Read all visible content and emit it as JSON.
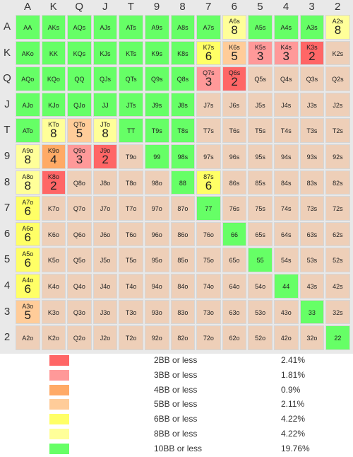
{
  "colors": {
    "10bb": "#66ff66",
    "8bb": "#ffff99",
    "6bb": "#ffff66",
    "5bb": "#ffcc99",
    "4bb": "#ffaa66",
    "3bb": "#ff9999",
    "2bb": "#ff6666",
    "fold": "#eecfb8",
    "background": "#e9e9e9"
  },
  "ranks": [
    "A",
    "K",
    "Q",
    "J",
    "T",
    "9",
    "8",
    "7",
    "6",
    "5",
    "4",
    "3",
    "2"
  ],
  "grid": [
    [
      [
        "AA",
        "",
        "10bb"
      ],
      [
        "AKs",
        "",
        "10bb"
      ],
      [
        "AQs",
        "",
        "10bb"
      ],
      [
        "AJs",
        "",
        "10bb"
      ],
      [
        "ATs",
        "",
        "10bb"
      ],
      [
        "A9s",
        "",
        "10bb"
      ],
      [
        "A8s",
        "",
        "10bb"
      ],
      [
        "A7s",
        "",
        "10bb"
      ],
      [
        "A6s",
        "8",
        "8bb"
      ],
      [
        "A5s",
        "",
        "10bb"
      ],
      [
        "A4s",
        "",
        "10bb"
      ],
      [
        "A3s",
        "",
        "10bb"
      ],
      [
        "A2s",
        "8",
        "8bb"
      ]
    ],
    [
      [
        "AKo",
        "",
        "10bb"
      ],
      [
        "KK",
        "",
        "10bb"
      ],
      [
        "KQs",
        "",
        "10bb"
      ],
      [
        "KJs",
        "",
        "10bb"
      ],
      [
        "KTs",
        "",
        "10bb"
      ],
      [
        "K9s",
        "",
        "10bb"
      ],
      [
        "K8s",
        "",
        "10bb"
      ],
      [
        "K7s",
        "6",
        "6bb"
      ],
      [
        "K6s",
        "5",
        "5bb"
      ],
      [
        "K5s",
        "3",
        "3bb"
      ],
      [
        "K4s",
        "3",
        "3bb"
      ],
      [
        "K3s",
        "2",
        "2bb"
      ],
      [
        "K2s",
        "",
        "fold"
      ]
    ],
    [
      [
        "AQo",
        "",
        "10bb"
      ],
      [
        "KQo",
        "",
        "10bb"
      ],
      [
        "QQ",
        "",
        "10bb"
      ],
      [
        "QJs",
        "",
        "10bb"
      ],
      [
        "QTs",
        "",
        "10bb"
      ],
      [
        "Q9s",
        "",
        "10bb"
      ],
      [
        "Q8s",
        "",
        "10bb"
      ],
      [
        "Q7s",
        "3",
        "3bb"
      ],
      [
        "Q6s",
        "2",
        "2bb"
      ],
      [
        "Q5s",
        "",
        "fold"
      ],
      [
        "Q4s",
        "",
        "fold"
      ],
      [
        "Q3s",
        "",
        "fold"
      ],
      [
        "Q2s",
        "",
        "fold"
      ]
    ],
    [
      [
        "AJo",
        "",
        "10bb"
      ],
      [
        "KJo",
        "",
        "10bb"
      ],
      [
        "QJo",
        "",
        "10bb"
      ],
      [
        "JJ",
        "",
        "10bb"
      ],
      [
        "JTs",
        "",
        "10bb"
      ],
      [
        "J9s",
        "",
        "10bb"
      ],
      [
        "J8s",
        "",
        "10bb"
      ],
      [
        "J7s",
        "",
        "fold"
      ],
      [
        "J6s",
        "",
        "fold"
      ],
      [
        "J5s",
        "",
        "fold"
      ],
      [
        "J4s",
        "",
        "fold"
      ],
      [
        "J3s",
        "",
        "fold"
      ],
      [
        "J2s",
        "",
        "fold"
      ]
    ],
    [
      [
        "ATo",
        "",
        "10bb"
      ],
      [
        "KTo",
        "8",
        "8bb"
      ],
      [
        "QTo",
        "5",
        "5bb"
      ],
      [
        "JTo",
        "8",
        "8bb"
      ],
      [
        "TT",
        "",
        "10bb"
      ],
      [
        "T9s",
        "",
        "10bb"
      ],
      [
        "T8s",
        "",
        "10bb"
      ],
      [
        "T7s",
        "",
        "fold"
      ],
      [
        "T6s",
        "",
        "fold"
      ],
      [
        "T5s",
        "",
        "fold"
      ],
      [
        "T4s",
        "",
        "fold"
      ],
      [
        "T3s",
        "",
        "fold"
      ],
      [
        "T2s",
        "",
        "fold"
      ]
    ],
    [
      [
        "A9o",
        "8",
        "8bb"
      ],
      [
        "K9o",
        "4",
        "4bb"
      ],
      [
        "Q9o",
        "3",
        "3bb"
      ],
      [
        "J9o",
        "2",
        "2bb"
      ],
      [
        "T9o",
        "",
        "fold"
      ],
      [
        "99",
        "",
        "10bb"
      ],
      [
        "98s",
        "",
        "10bb"
      ],
      [
        "97s",
        "",
        "fold"
      ],
      [
        "96s",
        "",
        "fold"
      ],
      [
        "95s",
        "",
        "fold"
      ],
      [
        "94s",
        "",
        "fold"
      ],
      [
        "93s",
        "",
        "fold"
      ],
      [
        "92s",
        "",
        "fold"
      ]
    ],
    [
      [
        "A8o",
        "8",
        "8bb"
      ],
      [
        "K8o",
        "2",
        "2bb"
      ],
      [
        "Q8o",
        "",
        "fold"
      ],
      [
        "J8o",
        "",
        "fold"
      ],
      [
        "T8o",
        "",
        "fold"
      ],
      [
        "98o",
        "",
        "fold"
      ],
      [
        "88",
        "",
        "10bb"
      ],
      [
        "87s",
        "6",
        "6bb"
      ],
      [
        "86s",
        "",
        "fold"
      ],
      [
        "85s",
        "",
        "fold"
      ],
      [
        "84s",
        "",
        "fold"
      ],
      [
        "83s",
        "",
        "fold"
      ],
      [
        "82s",
        "",
        "fold"
      ]
    ],
    [
      [
        "A7o",
        "6",
        "6bb"
      ],
      [
        "K7o",
        "",
        "fold"
      ],
      [
        "Q7o",
        "",
        "fold"
      ],
      [
        "J7o",
        "",
        "fold"
      ],
      [
        "T7o",
        "",
        "fold"
      ],
      [
        "97o",
        "",
        "fold"
      ],
      [
        "87o",
        "",
        "fold"
      ],
      [
        "77",
        "",
        "10bb"
      ],
      [
        "76s",
        "",
        "fold"
      ],
      [
        "75s",
        "",
        "fold"
      ],
      [
        "74s",
        "",
        "fold"
      ],
      [
        "73s",
        "",
        "fold"
      ],
      [
        "72s",
        "",
        "fold"
      ]
    ],
    [
      [
        "A6o",
        "6",
        "6bb"
      ],
      [
        "K6o",
        "",
        "fold"
      ],
      [
        "Q6o",
        "",
        "fold"
      ],
      [
        "J6o",
        "",
        "fold"
      ],
      [
        "T6o",
        "",
        "fold"
      ],
      [
        "96o",
        "",
        "fold"
      ],
      [
        "86o",
        "",
        "fold"
      ],
      [
        "76o",
        "",
        "fold"
      ],
      [
        "66",
        "",
        "10bb"
      ],
      [
        "65s",
        "",
        "fold"
      ],
      [
        "64s",
        "",
        "fold"
      ],
      [
        "63s",
        "",
        "fold"
      ],
      [
        "62s",
        "",
        "fold"
      ]
    ],
    [
      [
        "A5o",
        "6",
        "6bb"
      ],
      [
        "K5o",
        "",
        "fold"
      ],
      [
        "Q5o",
        "",
        "fold"
      ],
      [
        "J5o",
        "",
        "fold"
      ],
      [
        "T5o",
        "",
        "fold"
      ],
      [
        "95o",
        "",
        "fold"
      ],
      [
        "85o",
        "",
        "fold"
      ],
      [
        "75o",
        "",
        "fold"
      ],
      [
        "65o",
        "",
        "fold"
      ],
      [
        "55",
        "",
        "10bb"
      ],
      [
        "54s",
        "",
        "fold"
      ],
      [
        "53s",
        "",
        "fold"
      ],
      [
        "52s",
        "",
        "fold"
      ]
    ],
    [
      [
        "A4o",
        "6",
        "6bb"
      ],
      [
        "K4o",
        "",
        "fold"
      ],
      [
        "Q4o",
        "",
        "fold"
      ],
      [
        "J4o",
        "",
        "fold"
      ],
      [
        "T4o",
        "",
        "fold"
      ],
      [
        "94o",
        "",
        "fold"
      ],
      [
        "84o",
        "",
        "fold"
      ],
      [
        "74o",
        "",
        "fold"
      ],
      [
        "64o",
        "",
        "fold"
      ],
      [
        "54o",
        "",
        "fold"
      ],
      [
        "44",
        "",
        "10bb"
      ],
      [
        "43s",
        "",
        "fold"
      ],
      [
        "42s",
        "",
        "fold"
      ]
    ],
    [
      [
        "A3o",
        "5",
        "5bb"
      ],
      [
        "K3o",
        "",
        "fold"
      ],
      [
        "Q3o",
        "",
        "fold"
      ],
      [
        "J3o",
        "",
        "fold"
      ],
      [
        "T3o",
        "",
        "fold"
      ],
      [
        "93o",
        "",
        "fold"
      ],
      [
        "83o",
        "",
        "fold"
      ],
      [
        "73o",
        "",
        "fold"
      ],
      [
        "63o",
        "",
        "fold"
      ],
      [
        "53o",
        "",
        "fold"
      ],
      [
        "43o",
        "",
        "fold"
      ],
      [
        "33",
        "",
        "10bb"
      ],
      [
        "32s",
        "",
        "fold"
      ]
    ],
    [
      [
        "A2o",
        "",
        "fold"
      ],
      [
        "K2o",
        "",
        "fold"
      ],
      [
        "Q2o",
        "",
        "fold"
      ],
      [
        "J2o",
        "",
        "fold"
      ],
      [
        "T2o",
        "",
        "fold"
      ],
      [
        "92o",
        "",
        "fold"
      ],
      [
        "82o",
        "",
        "fold"
      ],
      [
        "72o",
        "",
        "fold"
      ],
      [
        "62o",
        "",
        "fold"
      ],
      [
        "52o",
        "",
        "fold"
      ],
      [
        "42o",
        "",
        "fold"
      ],
      [
        "32o",
        "",
        "fold"
      ],
      [
        "22",
        "",
        "10bb"
      ]
    ]
  ],
  "legend": [
    {
      "color": "#ff6666",
      "label": "2BB or less",
      "percent": "2.41%"
    },
    {
      "color": "#ff9999",
      "label": "3BB or less",
      "percent": "1.81%"
    },
    {
      "color": "#ffaa66",
      "label": "4BB or less",
      "percent": "0.9%"
    },
    {
      "color": "#ffcc99",
      "label": "5BB or less",
      "percent": "2.11%"
    },
    {
      "color": "#ffff66",
      "label": "6BB or less",
      "percent": "4.22%"
    },
    {
      "color": "#ffff99",
      "label": "8BB or less",
      "percent": "4.22%"
    },
    {
      "color": "#66ff66",
      "label": "10BB or less",
      "percent": "19.76%"
    }
  ]
}
